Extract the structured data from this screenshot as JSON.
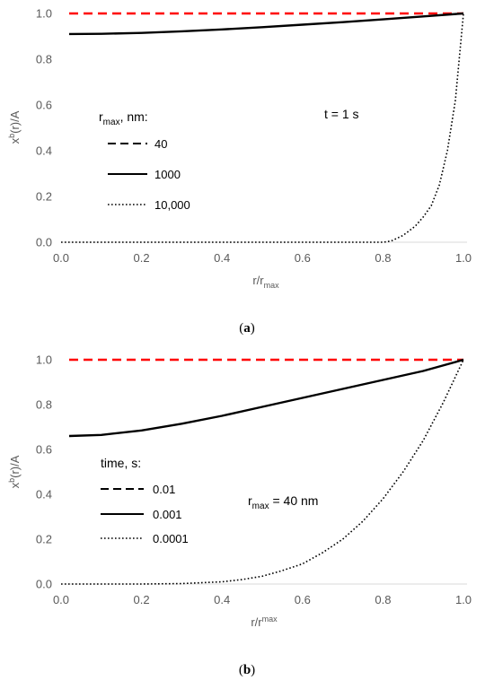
{
  "chart_data": [
    {
      "type": "line",
      "panel": "a",
      "caption": {
        "open": "(",
        "letter": "a",
        "close": ")"
      },
      "xlabel": {
        "base": "r/r",
        "sub": "max"
      },
      "ylabel": {
        "base": "x",
        "sup": "b",
        "rest": "(r)/A"
      },
      "xlim": [
        0.0,
        1.0
      ],
      "ylim": [
        0.0,
        1.0
      ],
      "xticks": [
        "0.0",
        "0.2",
        "0.4",
        "0.6",
        "0.8",
        "1.0"
      ],
      "yticks": [
        "0.0",
        "0.2",
        "0.4",
        "0.6",
        "0.8",
        "1.0"
      ],
      "grid": false,
      "legend": {
        "title_base": "r",
        "title_sub": "max",
        "title_rest": ", nm:",
        "placement": "left",
        "entries": [
          "40",
          "1000",
          "10,000"
        ]
      },
      "annotation": {
        "text": "t = 1 s"
      },
      "series": [
        {
          "name": "40",
          "style": "dashed",
          "color": "#ff0000",
          "x": [
            0.02,
            0.2,
            0.4,
            0.6,
            0.8,
            1.0
          ],
          "y": [
            1.0,
            1.0,
            1.0,
            1.0,
            1.0,
            1.0
          ]
        },
        {
          "name": "1000",
          "style": "solid",
          "color": "#000000",
          "x": [
            0.02,
            0.1,
            0.2,
            0.3,
            0.4,
            0.5,
            0.6,
            0.7,
            0.8,
            0.9,
            1.0
          ],
          "y": [
            0.91,
            0.911,
            0.915,
            0.922,
            0.93,
            0.94,
            0.951,
            0.962,
            0.974,
            0.987,
            1.0
          ]
        },
        {
          "name": "10,000",
          "style": "dotted",
          "color": "#000000",
          "x": [
            0.0,
            0.75,
            0.8,
            0.82,
            0.85,
            0.88,
            0.9,
            0.92,
            0.94,
            0.96,
            0.98,
            1.0
          ],
          "y": [
            0.0,
            0.0,
            0.0,
            0.005,
            0.03,
            0.07,
            0.11,
            0.16,
            0.25,
            0.4,
            0.62,
            1.0
          ]
        }
      ]
    },
    {
      "type": "line",
      "panel": "b",
      "caption": {
        "open": "(",
        "letter": "b",
        "close": ")"
      },
      "xlabel": {
        "base": "r/r",
        "sup": "max"
      },
      "ylabel": {
        "base": "x",
        "sup": "b",
        "rest": "(r)/A"
      },
      "xlim": [
        0.0,
        1.0
      ],
      "ylim": [
        0.0,
        1.0
      ],
      "xticks": [
        "0.0",
        "0.2",
        "0.4",
        "0.6",
        "0.8",
        "1.0"
      ],
      "yticks": [
        "0.0",
        "0.2",
        "0.4",
        "0.6",
        "0.8",
        "1.0"
      ],
      "grid": false,
      "legend": {
        "title_base": "time, s:",
        "placement": "left",
        "entries": [
          "0.01",
          "0.001",
          "0.0001"
        ]
      },
      "annotation": {
        "text_base": "r",
        "text_sub": "max",
        "text_rest": " = 40 nm"
      },
      "series": [
        {
          "name": "0.01",
          "style": "dashed",
          "color": "#ff0000",
          "x": [
            0.02,
            0.2,
            0.4,
            0.6,
            0.8,
            1.0
          ],
          "y": [
            1.0,
            1.0,
            1.0,
            1.0,
            1.0,
            1.0
          ]
        },
        {
          "name": "0.001",
          "style": "solid",
          "color": "#000000",
          "x": [
            0.02,
            0.1,
            0.2,
            0.3,
            0.4,
            0.5,
            0.6,
            0.7,
            0.8,
            0.9,
            1.0
          ],
          "y": [
            0.66,
            0.665,
            0.685,
            0.715,
            0.75,
            0.79,
            0.83,
            0.87,
            0.91,
            0.95,
            1.0
          ]
        },
        {
          "name": "0.0001",
          "style": "dotted",
          "color": "#000000",
          "x": [
            0.0,
            0.2,
            0.3,
            0.4,
            0.45,
            0.5,
            0.55,
            0.6,
            0.65,
            0.7,
            0.75,
            0.8,
            0.85,
            0.9,
            0.95,
            1.0
          ],
          "y": [
            0.0,
            0.0,
            0.002,
            0.01,
            0.02,
            0.035,
            0.06,
            0.09,
            0.14,
            0.2,
            0.28,
            0.38,
            0.5,
            0.64,
            0.81,
            1.0
          ]
        }
      ]
    }
  ]
}
